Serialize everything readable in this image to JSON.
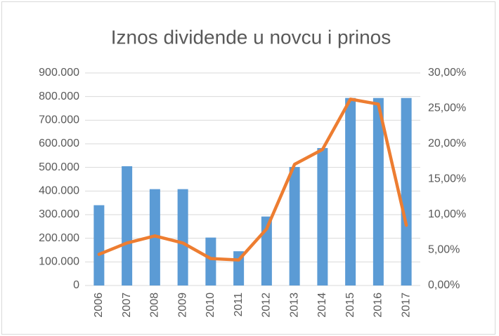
{
  "chart_data": {
    "type": "bar",
    "title": "Iznos dividende u novcu i prinos",
    "categories": [
      "2006",
      "2007",
      "2008",
      "2009",
      "2010",
      "2011",
      "2012",
      "2013",
      "2014",
      "2015",
      "2016",
      "2017"
    ],
    "series": [
      {
        "type": "bar",
        "color": "#5b9bd5",
        "values": [
          340000,
          505000,
          408000,
          408000,
          203000,
          145000,
          292000,
          502000,
          582000,
          794000,
          794000,
          794000
        ]
      },
      {
        "type": "line",
        "axis": "y2",
        "color": "#ed7d31",
        "values": [
          4.4,
          6.0,
          7.0,
          6.0,
          3.8,
          3.6,
          8.0,
          17.1,
          19.2,
          26.3,
          25.6,
          8.5
        ]
      }
    ],
    "ylim": [
      0,
      900000
    ],
    "yticks": [
      0,
      {
        "value": 100000,
        "label": "100.000"
      },
      {
        "value": 200000,
        "label": "200.000"
      },
      {
        "value": 300000,
        "label": "300.000"
      },
      {
        "value": 400000,
        "label": "400.000"
      },
      {
        "value": 500000,
        "label": "500.000"
      },
      {
        "value": 600000,
        "label": "600.000"
      },
      {
        "value": 700000,
        "label": "700.000"
      },
      {
        "value": 800000,
        "label": "800.000"
      },
      {
        "value": 900000,
        "label": "900.000"
      }
    ],
    "y2lim": [
      0,
      30
    ],
    "y2ticks": [
      {
        "value": 0,
        "label": "0,00%"
      },
      {
        "value": 5,
        "label": "5,00%"
      },
      {
        "value": 10,
        "label": "10,00%"
      },
      {
        "value": 15,
        "label": "15,00%"
      },
      {
        "value": 20,
        "label": "20,00%"
      },
      {
        "value": 25,
        "label": "25,00%"
      },
      {
        "value": 30,
        "label": "30,00%"
      }
    ],
    "grid": true
  }
}
